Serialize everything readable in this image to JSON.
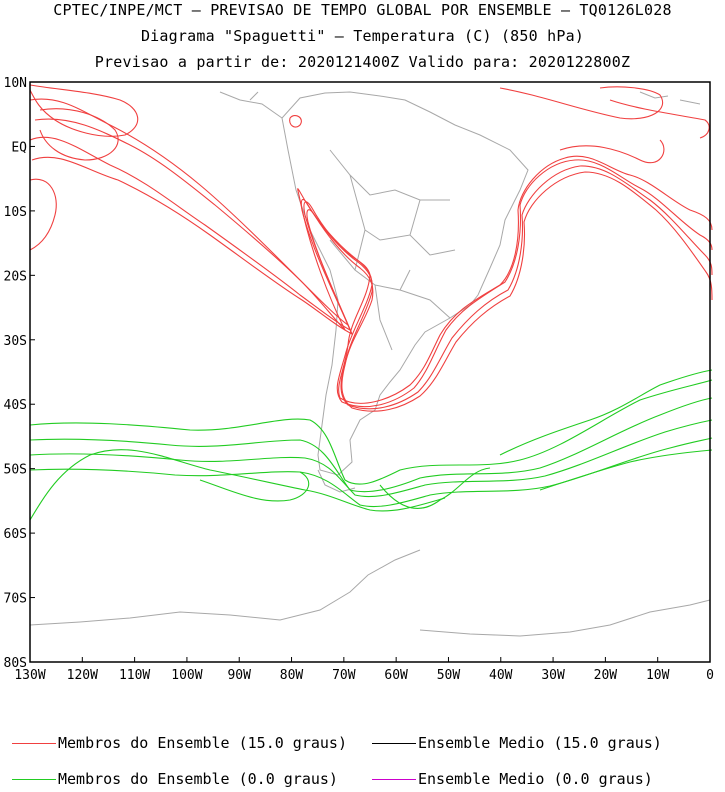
{
  "header": {
    "line1": "CPTEC/INPE/MCT — PREVISAO DE TEMPO GLOBAL POR ENSEMBLE — TQ0126L028",
    "line2": "Diagrama \"Spaguetti\" — Temperatura (C) (850 hPa)",
    "line3": "Previsao a partir de: 2020121400Z  Valido para: 2020122800Z"
  },
  "axes": {
    "lat_ticks": [
      "10N",
      "EQ",
      "10S",
      "20S",
      "30S",
      "40S",
      "50S",
      "60S",
      "70S",
      "80S"
    ],
    "lon_ticks": [
      "130W",
      "120W",
      "110W",
      "100W",
      "90W",
      "80W",
      "70W",
      "60W",
      "50W",
      "40W",
      "30W",
      "20W",
      "10W",
      "0"
    ]
  },
  "colors": {
    "warm_members": "#f04040",
    "cold_members": "#22cc22",
    "ensemble_mean_15": "#000000",
    "ensemble_mean_0": "#cc00cc",
    "coastline": "#a8a8a8",
    "frame": "#000000"
  },
  "legend": [
    {
      "label": "Membros do Ensemble (15.0 graus)",
      "color": "#f04040"
    },
    {
      "label": "Ensemble Medio (15.0 graus)",
      "color": "#000000"
    },
    {
      "label": "Membros do Ensemble (0.0 graus)",
      "color": "#22cc22"
    },
    {
      "label": "Ensemble Medio (0.0 graus)",
      "color": "#cc00cc"
    }
  ]
}
